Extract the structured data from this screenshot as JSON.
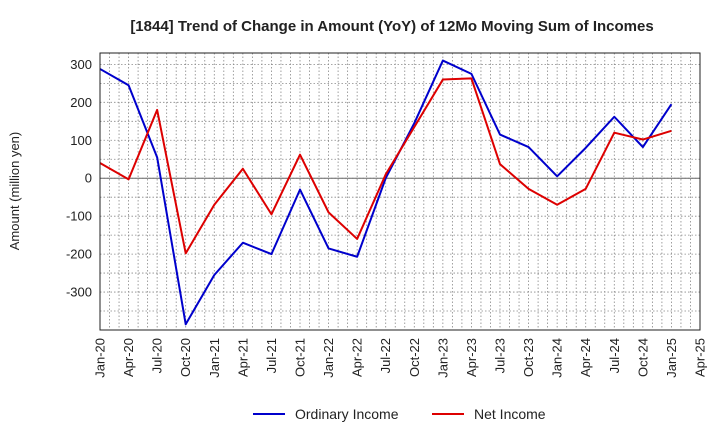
{
  "chart_data": {
    "type": "line",
    "title": "[1844]  Trend of Change in Amount (YoY) of 12Mo Moving Sum of Incomes",
    "ylabel": "Amount (million yen)",
    "xlabel": "",
    "ylim": [
      -400,
      330
    ],
    "yticks": [
      -300,
      -200,
      -100,
      0,
      100,
      200,
      300
    ],
    "x_tick_labels": [
      "Jan-20",
      "Apr-20",
      "Jul-20",
      "Oct-20",
      "Jan-21",
      "Apr-21",
      "Jul-21",
      "Oct-21",
      "Jan-22",
      "Apr-22",
      "Jul-22",
      "Oct-22",
      "Jan-23",
      "Apr-23",
      "Jul-23",
      "Oct-23",
      "Jan-24",
      "Apr-24",
      "Jul-24",
      "Oct-24",
      "Jan-25",
      "Apr-25"
    ],
    "grid": true,
    "legend_position": "bottom",
    "series": [
      {
        "name": "Ordinary Income",
        "color": "#0000cc",
        "values": [
          288,
          245,
          55,
          -385,
          -255,
          -170,
          -200,
          -30,
          -185,
          -207,
          0,
          145,
          310,
          275,
          115,
          82,
          5,
          80,
          162,
          82,
          195
        ]
      },
      {
        "name": "Net Income",
        "color": "#dd0000",
        "values": [
          40,
          -3,
          180,
          -198,
          -70,
          25,
          -95,
          62,
          -90,
          -160,
          10,
          135,
          260,
          263,
          37,
          -28,
          -70,
          -28,
          120,
          102,
          125
        ]
      }
    ]
  }
}
